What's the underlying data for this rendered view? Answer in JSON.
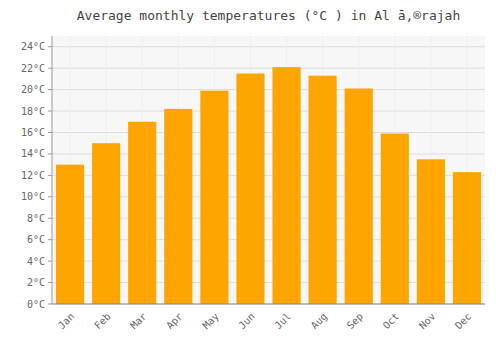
{
  "chart_data": {
    "type": "bar",
    "title": "Average monthly temperatures (°C ) in Al ā,®rajah",
    "categories": [
      "Jan",
      "Feb",
      "Mar",
      "Apr",
      "May",
      "Jun",
      "Jul",
      "Aug",
      "Sep",
      "Oct",
      "Nov",
      "Dec"
    ],
    "values": [
      13.0,
      15.0,
      17.0,
      18.2,
      19.9,
      21.5,
      22.1,
      21.3,
      20.1,
      15.9,
      13.5,
      12.3
    ],
    "color": "#FFA500",
    "ylim": [
      0,
      25
    ],
    "yticks": [
      {
        "value": 0,
        "label": "0°C"
      },
      {
        "value": 2,
        "label": "2°C"
      },
      {
        "value": 4,
        "label": "4°C"
      },
      {
        "value": 6,
        "label": "6°C"
      },
      {
        "value": 8,
        "label": "8°C"
      },
      {
        "value": 10,
        "label": "10°C"
      },
      {
        "value": 12,
        "label": "12°C"
      },
      {
        "value": 14,
        "label": "14°C"
      },
      {
        "value": 16,
        "label": "16°C"
      },
      {
        "value": 18,
        "label": "18°C"
      },
      {
        "value": 20,
        "label": "20°C"
      },
      {
        "value": 22,
        "label": "22°C"
      },
      {
        "value": 24,
        "label": "24°C"
      }
    ],
    "grid": true
  }
}
